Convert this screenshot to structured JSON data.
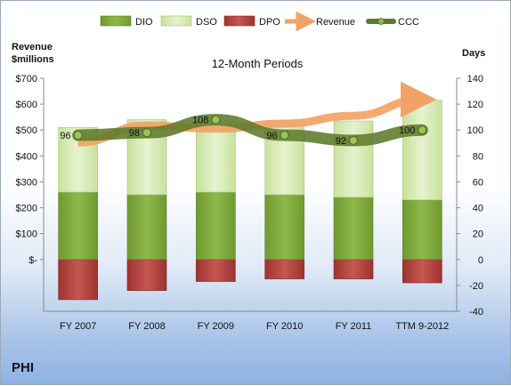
{
  "chart_data": {
    "type": "bar",
    "title": "12-Month Periods",
    "ticker": "PHI",
    "categories": [
      "FY 2007",
      "FY 2008",
      "FY 2009",
      "FY 2010",
      "FY 2011",
      "TTM 9-2012"
    ],
    "left_axis": {
      "label_line1": "Revenue",
      "label_line2": "$millions",
      "ylim": [
        -40,
        140
      ],
      "ticks": [
        {
          "v": 140,
          "label": "$700"
        },
        {
          "v": 120,
          "label": "$600"
        },
        {
          "v": 100,
          "label": "$500"
        },
        {
          "v": 80,
          "label": "$400"
        },
        {
          "v": 60,
          "label": "$300"
        },
        {
          "v": 40,
          "label": "$200"
        },
        {
          "v": 20,
          "label": "$100"
        },
        {
          "v": 0,
          "label": "$-"
        }
      ]
    },
    "right_axis": {
      "label": "Days",
      "ylim": [
        -40,
        140
      ],
      "ticks": [
        140,
        120,
        100,
        80,
        60,
        40,
        20,
        0,
        -20,
        -40
      ]
    },
    "legend": {
      "position": "top",
      "items": [
        {
          "name": "DIO",
          "kind": "bar",
          "color": "#7fa73c"
        },
        {
          "name": "DSO",
          "kind": "bar",
          "color": "#d6e9b2"
        },
        {
          "name": "DPO",
          "kind": "bar",
          "color": "#b2423f"
        },
        {
          "name": "Revenue",
          "kind": "arrow",
          "color": "#f2a266"
        },
        {
          "name": "CCC",
          "kind": "line",
          "color": "#5f7a2c"
        }
      ]
    },
    "series": [
      {
        "name": "DIO",
        "values": [
          52,
          50,
          52,
          50,
          48,
          46
        ]
      },
      {
        "name": "DSO",
        "values": [
          50,
          58,
          55,
          57,
          59,
          77
        ]
      },
      {
        "name": "DPO",
        "values": [
          -31,
          -24,
          -17,
          -15,
          -15,
          -18
        ]
      },
      {
        "name": "Revenue",
        "unit": "$millions",
        "values": [
          452,
          518,
          505,
          525,
          555,
          618
        ]
      },
      {
        "name": "CCC",
        "values": [
          96,
          98,
          108,
          96,
          92,
          100
        ],
        "labels": [
          "96",
          "98",
          "108",
          "96",
          "92",
          "100"
        ]
      }
    ],
    "grid": false
  }
}
